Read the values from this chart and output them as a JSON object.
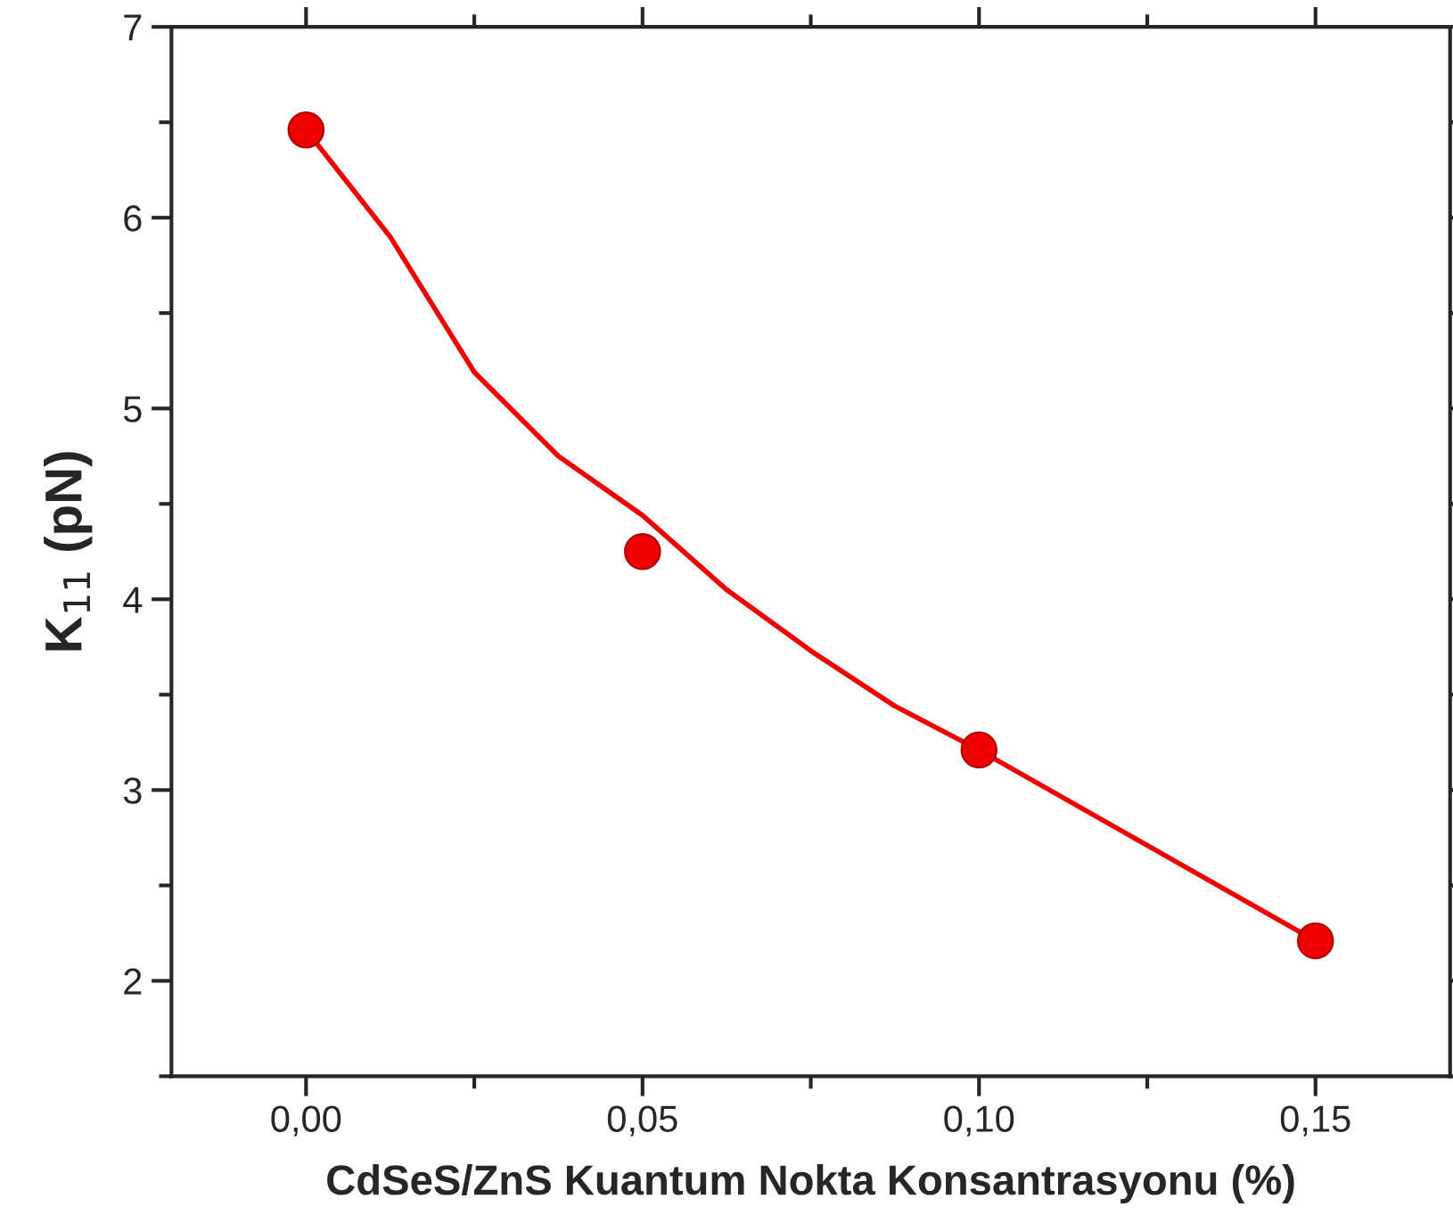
{
  "chart_data": {
    "type": "scatter",
    "xlabel": "CdSeS/ZnS Kuantum Nokta Konsantrasyonu (%)",
    "ylabel": "K$_{11}$ (pN)",
    "series": [
      {
        "color": "#ee0000",
        "marker": "circle",
        "x": [
          0,
          0.05,
          0.1,
          0.15
        ],
        "values": [
          6.46,
          4.25,
          3.21,
          2.21
        ]
      },
      {
        "type": "line",
        "color": "#ee0000",
        "marker": "none",
        "line_style": "solid",
        "x": [
          0,
          0.0125,
          0.025,
          0.0375,
          0.05,
          0.0625,
          0.075,
          0.0875,
          0.1,
          0.125,
          0.15
        ],
        "values": [
          6.46,
          5.9,
          5.19,
          4.75,
          4.44,
          4.05,
          3.73,
          3.44,
          3.21,
          2.71,
          2.21
        ]
      }
    ],
    "xlim": [
      -0.02,
      0.17
    ],
    "ylim": [
      1.5,
      7
    ],
    "xticks": [
      {
        "value": 0,
        "label": "0,00"
      },
      {
        "value": 0.05,
        "label": "0,05"
      },
      {
        "value": 0.1,
        "label": "0,10"
      },
      {
        "value": 0.15,
        "label": "0,15"
      }
    ],
    "yticks": [
      2,
      3,
      4,
      5,
      6,
      7
    ],
    "grid": false,
    "legend": false
  }
}
